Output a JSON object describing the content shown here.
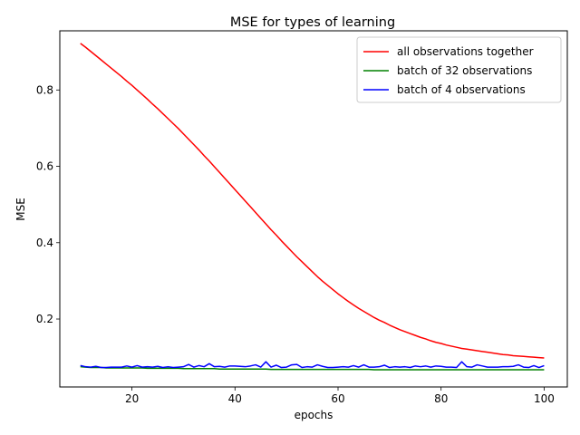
{
  "chart_data": {
    "type": "line",
    "title": "MSE for types of learning",
    "xlabel": "epochs",
    "ylabel": "MSE",
    "xlim": [
      6,
      104.5
    ],
    "ylim": [
      0.022,
      0.955
    ],
    "xticks": [
      20,
      40,
      60,
      80,
      100
    ],
    "yticks": [
      0.2,
      0.4,
      0.6,
      0.8
    ],
    "grid": false,
    "legend_position": "upper right",
    "x": [
      10,
      11,
      12,
      13,
      14,
      15,
      16,
      17,
      18,
      19,
      20,
      21,
      22,
      23,
      24,
      25,
      26,
      27,
      28,
      29,
      30,
      31,
      32,
      33,
      34,
      35,
      36,
      37,
      38,
      39,
      40,
      41,
      42,
      43,
      44,
      45,
      46,
      47,
      48,
      49,
      50,
      51,
      52,
      53,
      54,
      55,
      56,
      57,
      58,
      59,
      60,
      61,
      62,
      63,
      64,
      65,
      66,
      67,
      68,
      69,
      70,
      71,
      72,
      73,
      74,
      75,
      76,
      77,
      78,
      79,
      80,
      81,
      82,
      83,
      84,
      85,
      86,
      87,
      88,
      89,
      90,
      91,
      92,
      93,
      94,
      95,
      96,
      97,
      98,
      99,
      100
    ],
    "series": [
      {
        "name": "all observations together",
        "color": "#ff0000",
        "values": [
          0.922,
          0.912,
          0.901,
          0.89,
          0.879,
          0.868,
          0.857,
          0.846,
          0.835,
          0.823,
          0.812,
          0.8,
          0.788,
          0.776,
          0.763,
          0.751,
          0.738,
          0.725,
          0.712,
          0.699,
          0.685,
          0.671,
          0.657,
          0.643,
          0.628,
          0.614,
          0.599,
          0.584,
          0.569,
          0.554,
          0.539,
          0.524,
          0.509,
          0.494,
          0.479,
          0.464,
          0.449,
          0.434,
          0.42,
          0.405,
          0.391,
          0.377,
          0.363,
          0.35,
          0.337,
          0.324,
          0.311,
          0.299,
          0.288,
          0.277,
          0.266,
          0.256,
          0.246,
          0.237,
          0.228,
          0.22,
          0.212,
          0.204,
          0.197,
          0.191,
          0.184,
          0.178,
          0.172,
          0.167,
          0.162,
          0.157,
          0.152,
          0.148,
          0.143,
          0.139,
          0.136,
          0.132,
          0.129,
          0.126,
          0.123,
          0.121,
          0.119,
          0.117,
          0.115,
          0.113,
          0.111,
          0.109,
          0.107,
          0.106,
          0.104,
          0.103,
          0.102,
          0.101,
          0.1,
          0.099,
          0.098
        ]
      },
      {
        "name": "batch of 32 observations",
        "color": "#008000",
        "values": [
          0.075,
          0.074,
          0.073,
          0.073,
          0.073,
          0.072,
          0.072,
          0.072,
          0.072,
          0.072,
          0.072,
          0.072,
          0.072,
          0.071,
          0.071,
          0.071,
          0.071,
          0.071,
          0.071,
          0.071,
          0.07,
          0.07,
          0.07,
          0.07,
          0.07,
          0.07,
          0.07,
          0.069,
          0.069,
          0.069,
          0.069,
          0.069,
          0.069,
          0.069,
          0.069,
          0.069,
          0.069,
          0.068,
          0.068,
          0.068,
          0.068,
          0.068,
          0.068,
          0.068,
          0.068,
          0.068,
          0.068,
          0.068,
          0.068,
          0.068,
          0.068,
          0.068,
          0.068,
          0.068,
          0.068,
          0.068,
          0.068,
          0.067,
          0.067,
          0.067,
          0.067,
          0.067,
          0.067,
          0.067,
          0.067,
          0.067,
          0.067,
          0.067,
          0.067,
          0.067,
          0.067,
          0.067,
          0.067,
          0.067,
          0.067,
          0.067,
          0.067,
          0.067,
          0.067,
          0.067,
          0.067,
          0.067,
          0.067,
          0.067,
          0.067,
          0.067,
          0.067,
          0.067,
          0.067,
          0.067,
          0.067
        ]
      },
      {
        "name": "batch of 4 observations",
        "color": "#0000ff",
        "values": [
          0.078,
          0.075,
          0.074,
          0.076,
          0.073,
          0.073,
          0.074,
          0.074,
          0.074,
          0.077,
          0.074,
          0.078,
          0.074,
          0.075,
          0.074,
          0.076,
          0.073,
          0.075,
          0.073,
          0.074,
          0.075,
          0.081,
          0.074,
          0.078,
          0.075,
          0.083,
          0.075,
          0.076,
          0.074,
          0.077,
          0.077,
          0.076,
          0.075,
          0.077,
          0.08,
          0.074,
          0.088,
          0.074,
          0.079,
          0.073,
          0.074,
          0.08,
          0.081,
          0.073,
          0.075,
          0.074,
          0.08,
          0.076,
          0.073,
          0.073,
          0.074,
          0.075,
          0.074,
          0.078,
          0.074,
          0.08,
          0.074,
          0.074,
          0.075,
          0.079,
          0.073,
          0.075,
          0.074,
          0.075,
          0.073,
          0.077,
          0.075,
          0.077,
          0.074,
          0.077,
          0.076,
          0.074,
          0.074,
          0.073,
          0.088,
          0.075,
          0.074,
          0.08,
          0.077,
          0.074,
          0.074,
          0.074,
          0.075,
          0.075,
          0.076,
          0.08,
          0.074,
          0.073,
          0.078,
          0.073,
          0.078
        ]
      }
    ]
  }
}
